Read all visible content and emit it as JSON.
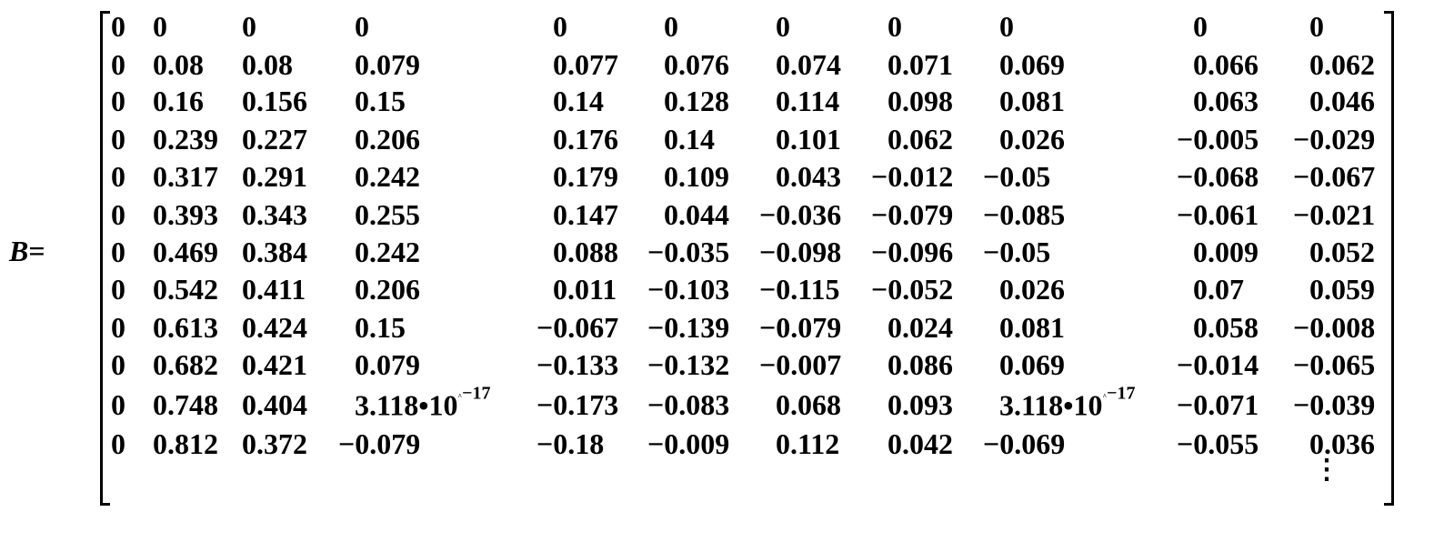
{
  "lhs": {
    "variable": "B",
    "operator": "="
  },
  "matrix": {
    "rows": [
      [
        "0",
        "0",
        "0",
        "0",
        "0",
        "0",
        "0",
        "0",
        "0",
        "0",
        "0"
      ],
      [
        "0",
        "0.08",
        "0.08",
        "0.079",
        "0.077",
        "0.076",
        "0.074",
        "0.071",
        "0.069",
        "0.066",
        "0.062"
      ],
      [
        "0",
        "0.16",
        "0.156",
        "0.15",
        "0.14",
        "0.128",
        "0.114",
        "0.098",
        "0.081",
        "0.063",
        "0.046"
      ],
      [
        "0",
        "0.239",
        "0.227",
        "0.206",
        "0.176",
        "0.14",
        "0.101",
        "0.062",
        "0.026",
        "−0.005",
        "−0.029"
      ],
      [
        "0",
        "0.317",
        "0.291",
        "0.242",
        "0.179",
        "0.109",
        "0.043",
        "−0.012",
        "−0.05",
        "−0.068",
        "−0.067"
      ],
      [
        "0",
        "0.393",
        "0.343",
        "0.255",
        "0.147",
        "0.044",
        "−0.036",
        "−0.079",
        "−0.085",
        "−0.061",
        "−0.021"
      ],
      [
        "0",
        "0.469",
        "0.384",
        "0.242",
        "0.088",
        "−0.035",
        "−0.098",
        "−0.096",
        "−0.05",
        "0.009",
        "0.052"
      ],
      [
        "0",
        "0.542",
        "0.411",
        "0.206",
        "0.011",
        "−0.103",
        "−0.115",
        "−0.052",
        "0.026",
        "0.07",
        "0.059"
      ],
      [
        "0",
        "0.613",
        "0.424",
        "0.15",
        "−0.067",
        "−0.139",
        "−0.079",
        "0.024",
        "0.081",
        "0.058",
        "−0.008"
      ],
      [
        "0",
        "0.682",
        "0.421",
        "0.079",
        "−0.133",
        "−0.132",
        "−0.007",
        "0.086",
        "0.069",
        "−0.014",
        "−0.065"
      ],
      [
        "0",
        "0.748",
        "0.404",
        "3.118•10^−17",
        "−0.173",
        "−0.083",
        "0.068",
        "0.093",
        "3.118•10^−17",
        "−0.071",
        "−0.039"
      ],
      [
        "0",
        "0.812",
        "0.372",
        "−0.079",
        "−0.18",
        "−0.009",
        "0.112",
        "0.042",
        "−0.069",
        "−0.055",
        "0.036"
      ]
    ],
    "continuation": "⋮"
  }
}
